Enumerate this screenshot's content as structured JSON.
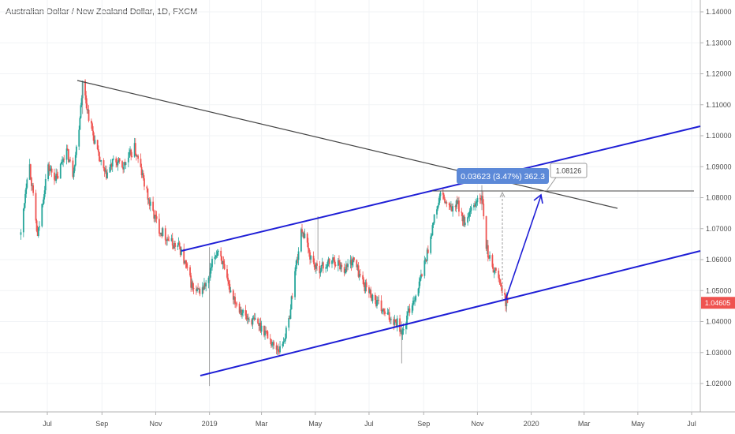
{
  "chart_data": {
    "type": "candlestick",
    "title": "Australian Dollar / New Zealand Dollar, 1D, FXCM",
    "x_ticks": [
      "Jul",
      "Sep",
      "Nov",
      "2019",
      "Mar",
      "May",
      "Jul",
      "Sep",
      "Nov",
      "2020",
      "Mar",
      "May",
      "Jul"
    ],
    "y_ticks": [
      "1.14000",
      "1.13000",
      "1.12000",
      "1.11000",
      "1.10000",
      "1.09000",
      "1.08000",
      "1.07000",
      "1.06000",
      "1.05000",
      "1.04000",
      "1.03000",
      "1.02000"
    ],
    "ylim": [
      1.0146,
      1.1438
    ],
    "last_price": "1.04605",
    "last_price_color": "#ef5350",
    "up_color": "#26a69a",
    "down_color": "#ef5350",
    "measure_label": "0.03623 (3.47%) 362.3",
    "target_label": "1.08126",
    "path": [
      [
        "2018-06-01",
        1.068
      ],
      [
        "2018-06-10",
        1.093
      ],
      [
        "2018-06-20",
        1.067
      ],
      [
        "2018-07-01",
        1.09
      ],
      [
        "2018-07-12",
        1.086
      ],
      [
        "2018-07-22",
        1.096
      ],
      [
        "2018-07-30",
        1.088
      ],
      [
        "2018-08-05",
        1.1
      ],
      [
        "2018-08-10",
        1.117
      ],
      [
        "2018-08-18",
        1.105
      ],
      [
        "2018-08-28",
        1.093
      ],
      [
        "2018-09-05",
        1.087
      ],
      [
        "2018-09-15",
        1.092
      ],
      [
        "2018-09-25",
        1.09
      ],
      [
        "2018-10-08",
        1.096
      ],
      [
        "2018-10-15",
        1.089
      ],
      [
        "2018-10-25",
        1.078
      ],
      [
        "2018-11-05",
        1.07
      ],
      [
        "2018-11-20",
        1.065
      ],
      [
        "2018-11-28",
        1.064
      ],
      [
        "2018-12-06",
        1.057
      ],
      [
        "2018-12-15",
        1.049
      ],
      [
        "2018-12-22",
        1.05
      ],
      [
        "2018-12-31",
        1.053
      ],
      [
        "2019-01-05",
        1.06
      ],
      [
        "2019-01-12",
        1.064
      ],
      [
        "2019-01-20",
        1.053
      ],
      [
        "2019-02-01",
        1.046
      ],
      [
        "2019-02-12",
        1.041
      ],
      [
        "2019-02-22",
        1.04
      ],
      [
        "2019-03-05",
        1.037
      ],
      [
        "2019-03-15",
        1.032
      ],
      [
        "2019-03-22",
        1.031
      ],
      [
        "2019-03-31",
        1.038
      ],
      [
        "2019-04-08",
        1.056
      ],
      [
        "2019-04-16",
        1.07
      ],
      [
        "2019-04-24",
        1.062
      ],
      [
        "2019-05-02",
        1.057
      ],
      [
        "2019-05-12",
        1.058
      ],
      [
        "2019-05-22",
        1.06
      ],
      [
        "2019-06-03",
        1.057
      ],
      [
        "2019-06-13",
        1.06
      ],
      [
        "2019-06-25",
        1.052
      ],
      [
        "2019-07-05",
        1.048
      ],
      [
        "2019-07-20",
        1.042
      ],
      [
        "2019-08-02",
        1.04
      ],
      [
        "2019-08-08",
        1.036
      ],
      [
        "2019-08-16",
        1.044
      ],
      [
        "2019-08-26",
        1.051
      ],
      [
        "2019-09-05",
        1.062
      ],
      [
        "2019-09-12",
        1.072
      ],
      [
        "2019-09-20",
        1.081
      ],
      [
        "2019-10-01",
        1.076
      ],
      [
        "2019-10-10",
        1.078
      ],
      [
        "2019-10-18",
        1.071
      ],
      [
        "2019-10-26",
        1.076
      ],
      [
        "2019-11-02",
        1.08
      ],
      [
        "2019-11-07",
        1.079
      ],
      [
        "2019-11-09",
        1.066
      ],
      [
        "2019-11-15",
        1.06
      ],
      [
        "2019-11-25",
        1.054
      ],
      [
        "2019-12-02",
        1.047
      ],
      [
        "2019-12-05",
        1.046
      ]
    ]
  }
}
